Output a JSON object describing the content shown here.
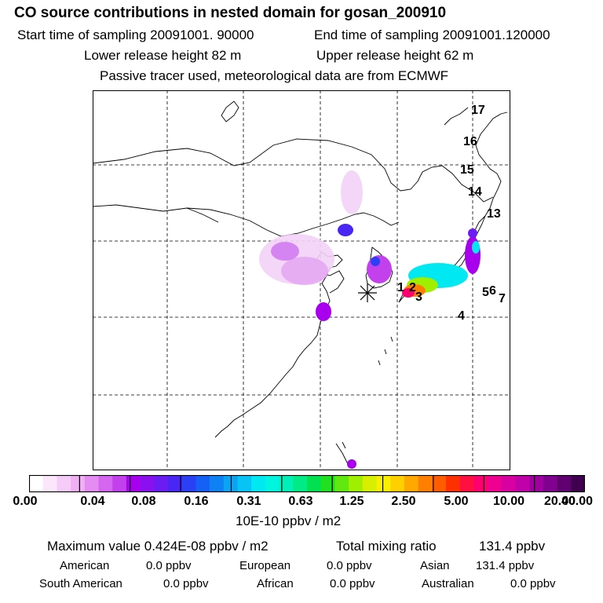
{
  "header": {
    "title": "CO  source contributions in nested domain for gosan_200910",
    "start_label": "Start time of sampling 20091001. 90000",
    "end_label": "End time of sampling 20091001.120000",
    "lower_label": "Lower release height   82 m",
    "upper_label": "Upper release height   62 m",
    "tracer_note": "Passive tracer used, meteorological data are from ECMWF"
  },
  "map": {
    "station_marker": "star-marker",
    "numbers": [
      "17",
      "16",
      "15",
      "14",
      "13",
      "1",
      "2",
      "3",
      "5",
      "6",
      "7",
      "4"
    ]
  },
  "colorbar": {
    "ticks": [
      "0.00",
      "0.04",
      "0.08",
      "0.16",
      "0.31",
      "0.63",
      "1.25",
      "2.50",
      "5.00",
      "10.00",
      "20.00",
      "40.00"
    ],
    "unit": "10E-10 ppbv / m2",
    "colors": [
      "#ffffff",
      "#fbe6fb",
      "#f5ccf7",
      "#f0b0f3",
      "#e48cf1",
      "#d466ef",
      "#c341ed",
      "#a800ee",
      "#8a10f0",
      "#6b1cf2",
      "#4a26f5",
      "#2a40f5",
      "#1560f5",
      "#0e82f5",
      "#0aa4f5",
      "#08c4f5",
      "#00e8f2",
      "#00f5e0",
      "#00f0b8",
      "#00ea85",
      "#00e050",
      "#20e020",
      "#60e810",
      "#a0ee00",
      "#d8f000",
      "#f8f000",
      "#ffd000",
      "#ffa800",
      "#ff8000",
      "#ff5c00",
      "#ff3000",
      "#ff1040",
      "#ff0070",
      "#f00090",
      "#d800a0",
      "#c000a8",
      "#a000a0",
      "#800090",
      "#600070",
      "#400050"
    ]
  },
  "stats": {
    "max_label": "Maximum value  0.424E-08 ppbv / m2",
    "total_label": "Total mixing ratio",
    "total_value": "131.4 ppbv",
    "american_label": "American",
    "american_value": "0.0 ppbv",
    "european_label": "European",
    "european_value": "0.0 ppbv",
    "asian_label": "Asian",
    "asian_value": "131.4 ppbv",
    "south_american_label": "South American",
    "south_american_value": "0.0 ppbv",
    "african_label": "African",
    "african_value": "0.0 ppbv",
    "australian_label": "Australian",
    "australian_value": "0.0 ppbv"
  }
}
